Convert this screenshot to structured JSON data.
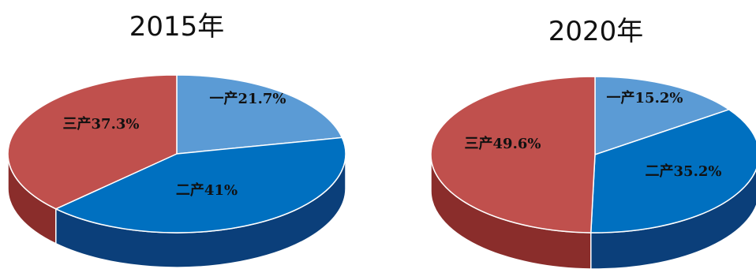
{
  "chart_data": [
    {
      "type": "pie",
      "title": "2015年",
      "categories": [
        "一产",
        "二产",
        "三产"
      ],
      "values": [
        21.7,
        41,
        37.3
      ],
      "labels": [
        "一产21.7%",
        "二产41%",
        "三产37.3%"
      ],
      "colors": [
        "#5b9bd5",
        "#0070c0",
        "#c0504d"
      ],
      "side_colors": [
        "#2f6ca6",
        "#0b3f7a",
        "#8a2d2b"
      ]
    },
    {
      "type": "pie",
      "title": "2020年",
      "categories": [
        "一产",
        "二产",
        "三产"
      ],
      "values": [
        15.2,
        35.2,
        49.6
      ],
      "labels": [
        "一产15.2%",
        "二产35.2%",
        "三产49.6%"
      ],
      "colors": [
        "#5b9bd5",
        "#0070c0",
        "#c0504d"
      ],
      "side_colors": [
        "#2f6ca6",
        "#0b3f7a",
        "#8a2d2b"
      ]
    }
  ]
}
